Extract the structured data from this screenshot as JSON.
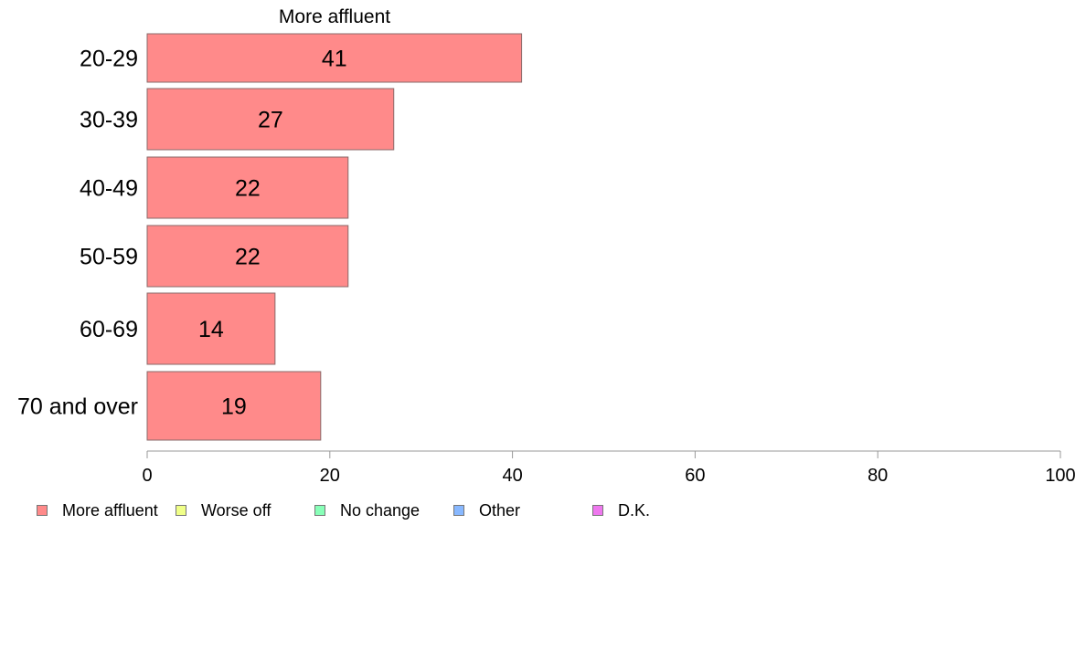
{
  "chart_data": {
    "type": "bar",
    "orientation": "horizontal",
    "title": "More affluent",
    "categories": [
      "20-29",
      "30-39",
      "40-49",
      "50-59",
      "60-69",
      "70 and over"
    ],
    "series": [
      {
        "name": "More affluent",
        "values": [
          41,
          27,
          22,
          22,
          14,
          19
        ],
        "color": "#ff8a8a"
      }
    ],
    "data_labels": [
      "41",
      "27",
      "22",
      "22",
      "14",
      "19"
    ],
    "xlim": [
      0,
      100
    ],
    "xticks": [
      0,
      20,
      40,
      60,
      80,
      100
    ],
    "grid": false,
    "legend_position": "bottom",
    "legend": [
      {
        "label": "More affluent",
        "color": "#ff8a8a"
      },
      {
        "label": "Worse off",
        "color": "#f0ff88"
      },
      {
        "label": "No change",
        "color": "#88ffb8"
      },
      {
        "label": "Other",
        "color": "#88b8ff"
      },
      {
        "label": "D.K.",
        "color": "#ee77ee"
      }
    ]
  }
}
